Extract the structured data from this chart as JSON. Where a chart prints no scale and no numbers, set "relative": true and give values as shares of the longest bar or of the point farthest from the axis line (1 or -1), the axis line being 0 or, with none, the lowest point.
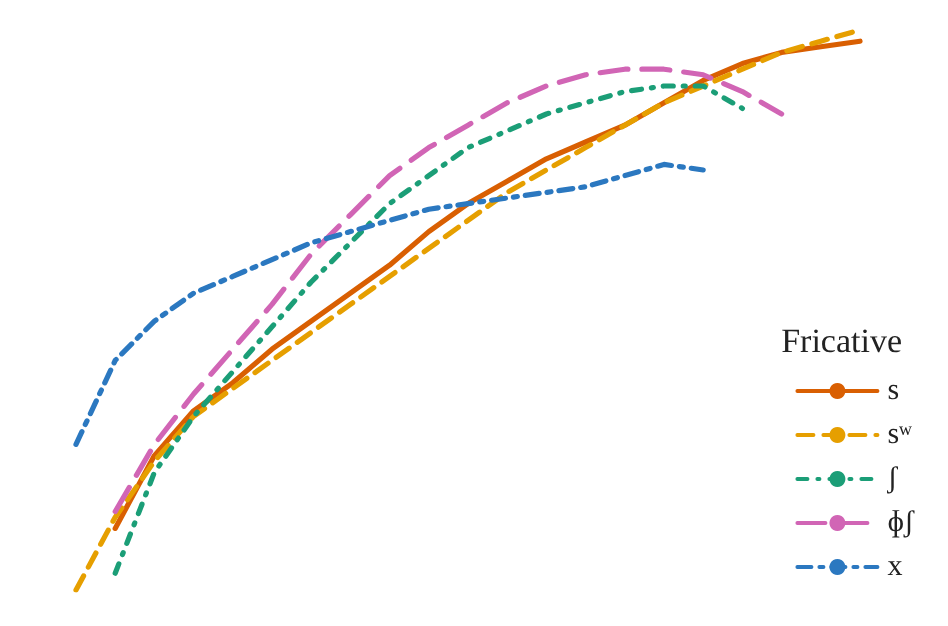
{
  "chart_data": {
    "type": "line",
    "relative": true,
    "legend_title": "Fricative",
    "legend": "right",
    "marker": "none",
    "categories": [
      null,
      null,
      null,
      null,
      null,
      null,
      null,
      null,
      null,
      null,
      null,
      null,
      null,
      null,
      null,
      null,
      null,
      null,
      null,
      null,
      null
    ],
    "series": [
      {
        "name": "s",
        "color": "#d95f02",
        "line_style": "solid",
        "values": [
          null,
          0.11,
          0.24,
          0.32,
          0.37,
          0.43,
          0.48,
          0.53,
          0.58,
          0.64,
          0.69,
          0.73,
          0.77,
          0.8,
          0.83,
          0.87,
          0.91,
          0.94,
          0.96,
          0.97,
          0.98
        ]
      },
      {
        "name": "sʷ",
        "color": "#e69f00",
        "line_style": "dashed",
        "values": [
          0,
          0.13,
          0.23,
          0.31,
          0.36,
          0.41,
          0.46,
          0.51,
          0.56,
          0.61,
          0.66,
          0.71,
          0.75,
          0.79,
          0.83,
          0.87,
          0.9,
          0.93,
          0.96,
          0.98,
          1
        ]
      },
      {
        "name": "ʃ",
        "color": "#1b9e77",
        "line_style": "dashed",
        "values": [
          null,
          0.03,
          0.21,
          0.31,
          0.39,
          0.47,
          0.55,
          0.62,
          0.69,
          0.74,
          0.79,
          0.82,
          0.85,
          0.87,
          0.89,
          0.9,
          0.9,
          0.86,
          null,
          null,
          null
        ]
      },
      {
        "name": "ɸʃ",
        "color": "#d165b5",
        "line_style": "dashed",
        "values": [
          null,
          0.14,
          0.26,
          0.35,
          0.43,
          0.51,
          0.6,
          0.67,
          0.74,
          0.79,
          0.83,
          0.87,
          0.9,
          0.92,
          0.93,
          0.93,
          0.92,
          0.89,
          0.85,
          null,
          null
        ]
      },
      {
        "name": "x",
        "color": "#2b78c0",
        "line_style": "dashed",
        "values": [
          0.26,
          0.41,
          0.48,
          0.53,
          0.56,
          0.59,
          0.62,
          0.64,
          0.66,
          0.68,
          0.69,
          0.7,
          0.71,
          0.72,
          0.74,
          0.76,
          0.75,
          null,
          null,
          null,
          null
        ]
      }
    ]
  }
}
